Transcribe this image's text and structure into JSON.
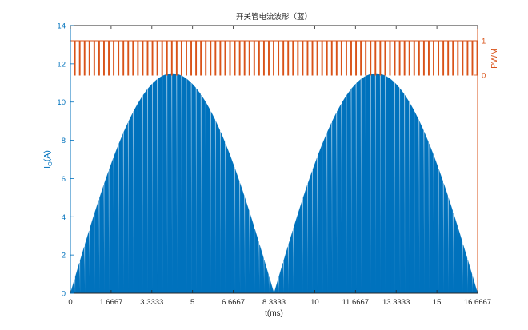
{
  "chart_data": {
    "type": "area",
    "title": "开关管电流波形（蓝）",
    "xlabel": "t(ms)",
    "ylabel_left_main": "I",
    "ylabel_left_sub": "O",
    "ylabel_left_rest": "(A)",
    "ylabel_right": "PWM",
    "xlim": [
      0,
      16.6667
    ],
    "ylim_left": [
      0,
      14
    ],
    "ylim_right_visible_ticks": [
      0,
      1
    ],
    "x_ticks": [
      "0",
      "1.6667",
      "3.3333",
      "5",
      "6.6667",
      "8.3333",
      "10",
      "11.6667",
      "13.3333",
      "15",
      "16.6667"
    ],
    "y_ticks_left": [
      "0",
      "2",
      "4",
      "6",
      "8",
      "10",
      "12",
      "14"
    ],
    "y_ticks_right": [
      "0",
      "1"
    ],
    "series": [
      {
        "axis": "left",
        "color": "#0072BD",
        "kind": "chopped-rectified-sine",
        "peak": 11.5,
        "period_ms": 8.3333,
        "num_pulses": 84,
        "pulse_fraction": 0.85
      },
      {
        "axis": "right",
        "color": "#D95319",
        "kind": "square-wave",
        "low": 0,
        "high": 1,
        "num_pulses": 84
      }
    ]
  },
  "colors": {
    "left_axis": "#0072BD",
    "right_axis": "#D95319",
    "axis_text": "#262626"
  }
}
